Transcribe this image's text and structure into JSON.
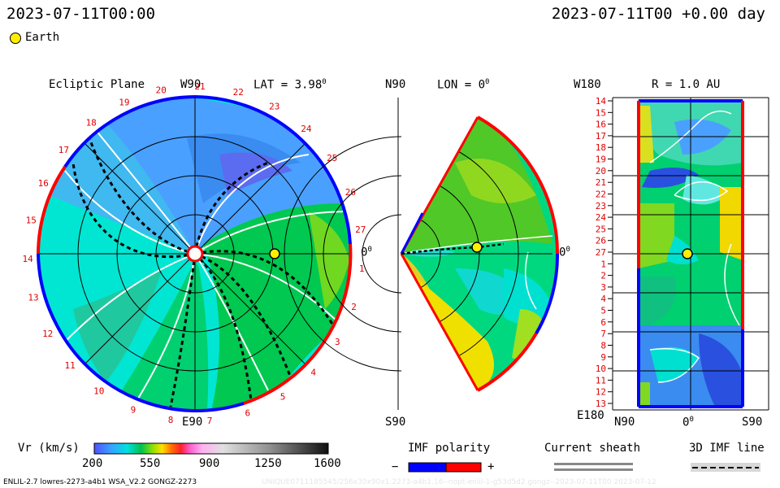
{
  "header": {
    "datetime_left": "2023-07-11T00:00",
    "datetime_right": "2023-07-11T00 +0.00 day",
    "earth_legend": "Earth"
  },
  "panel_ecliptic": {
    "title": "Ecliptic Plane",
    "top_label": "W90",
    "bottom_label": "E90",
    "right_label": "0",
    "lat_text": "LAT = 3.98",
    "degree_mark": "0",
    "carrington_labels": [
      "19",
      "20",
      "21",
      "22",
      "23",
      "24",
      "25",
      "26",
      "27",
      "1",
      "2",
      "3",
      "4",
      "5",
      "6",
      "7",
      "8",
      "9",
      "10",
      "11",
      "12",
      "13",
      "14",
      "15",
      "16",
      "17",
      "18"
    ]
  },
  "panel_meridional": {
    "top_left_label": "N90",
    "bottom_left_label": "S90",
    "lon_text": "LON = 0",
    "degree_mark": "0",
    "right_label": "0"
  },
  "panel_radial": {
    "title": "R = 1.0 AU",
    "top_left_label": "W180",
    "bottom_left_label": "E180",
    "x_labels": [
      "N90",
      "0",
      "S90"
    ],
    "degree_mark": "0",
    "y_labels": [
      "14",
      "15",
      "16",
      "17",
      "18",
      "19",
      "20",
      "21",
      "22",
      "23",
      "24",
      "25",
      "26",
      "27",
      "1",
      "2",
      "3",
      "4",
      "5",
      "6",
      "7",
      "8",
      "9",
      "10",
      "11",
      "12",
      "13"
    ]
  },
  "legend": {
    "colorbar_label": "Vr (km/s)",
    "colorbar_ticks": [
      "200",
      "550",
      "900",
      "1250",
      "1600"
    ],
    "imf_title": "IMF polarity",
    "imf_minus": "−",
    "imf_plus": "+",
    "sheath_title": "Current sheath",
    "imf3d_title": "3D IMF line"
  },
  "footer": {
    "model_text": "ENLIL-2.7 lowres-2273-a4b1 WSA_V2.2 GONGZ-2273",
    "watermark": "UNIQUE0711185545/256x30x90x1.2273-a4b1.16--nopt-enlil-1-g53d5d2.gongz--2023-07-11T00   2023-07-12"
  },
  "colors": {
    "polarity_negative": "#0000ff",
    "polarity_positive": "#ff0000",
    "earth": "#ffee00",
    "label_red": "#e00000"
  }
}
